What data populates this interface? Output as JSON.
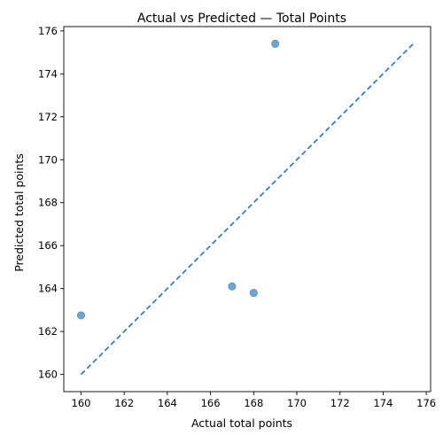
{
  "chart_data": {
    "type": "scatter",
    "title": "Actual vs Predicted — Total Points",
    "xlabel": "Actual total points",
    "ylabel": "Predicted total points",
    "xlim": [
      159.2,
      176.2
    ],
    "ylim": [
      159.2,
      176.2
    ],
    "xticks": [
      160,
      162,
      164,
      166,
      168,
      170,
      172,
      174,
      176
    ],
    "yticks": [
      160,
      162,
      164,
      166,
      168,
      170,
      172,
      174,
      176
    ],
    "points": [
      {
        "x": 160,
        "y": 162.75
      },
      {
        "x": 167,
        "y": 164.1
      },
      {
        "x": 168,
        "y": 163.8
      },
      {
        "x": 169,
        "y": 175.4
      }
    ],
    "reference_line": {
      "from": [
        160,
        160
      ],
      "to": [
        175.4,
        175.4
      ],
      "style": "dashed"
    },
    "colors": {
      "point": "#1f77b4",
      "line": "#1f77b4"
    },
    "grid": false
  }
}
